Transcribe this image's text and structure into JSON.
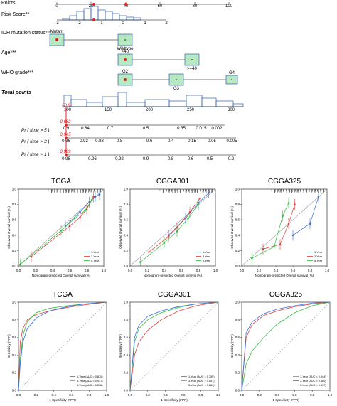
{
  "nomogram": {
    "rows": [
      {
        "label": "Points"
      },
      {
        "label": "Risk Score**"
      },
      {
        "label": "IDH mutation status***"
      },
      {
        "label": "Age***"
      },
      {
        "label": "WHO grade***"
      },
      {
        "label": "Total points"
      },
      {
        "label": "Pr ( time > 5 )"
      },
      {
        "label": "Pr ( time > 3 )"
      },
      {
        "label": "Pr ( time > 1 )"
      }
    ],
    "points_ticks": [
      "0",
      "20",
      "40",
      "60",
      "80",
      "100"
    ],
    "risk_ticks": [
      "-3",
      "-2",
      "-1",
      "0",
      "1",
      "2"
    ],
    "idh_levels": [
      "Mutant",
      "Wildtype"
    ],
    "age_levels": [
      "<40",
      ">=40"
    ],
    "grade_levels": [
      "G2",
      "G3",
      "G4"
    ],
    "total_ticks": [
      "100",
      "150",
      "200",
      "250",
      "300"
    ],
    "pr5_ticks": [
      "0.9",
      "0.84",
      "0.7",
      "0.5",
      "0.35",
      "0.015",
      "0.002"
    ],
    "pr3_ticks": [
      "0.96",
      "0.92",
      "0.88",
      "0.8",
      "0.6",
      "0.4",
      "0.15",
      "0.05",
      "0.005"
    ],
    "pr1_ticks": [
      "0.98",
      "0.96",
      "0.92",
      "0.9",
      "0.8",
      "0.6",
      "0.5",
      "0.2"
    ],
    "highlight": {
      "total": "68.9",
      "pr5": "0.682",
      "pr3": "0.945",
      "pr1": "0.989"
    }
  },
  "chart_data": [
    {
      "type": "line",
      "title": "TCGA",
      "xlabel": "Nomogram-predicted Overall survival (%)",
      "ylabel": "Observed Overall survival (%)",
      "xlim": [
        0,
        1
      ],
      "ylim": [
        0,
        1
      ],
      "x_ticks": [
        "0.0",
        "0.2",
        "0.4",
        "0.6",
        "0.8",
        "1.0"
      ],
      "y_ticks": [
        "0.0",
        "0.2",
        "0.4",
        "0.6",
        "0.8",
        "1.0"
      ],
      "legend": [
        "1-Year",
        "3-Year",
        "5-Year"
      ],
      "legend_position": "bottom-right",
      "series": [
        {
          "name": "1-Year",
          "color": "#3b6fe0",
          "x": [
            0.55,
            0.72,
            0.83,
            0.9,
            0.95
          ],
          "y": [
            0.52,
            0.7,
            0.83,
            0.9,
            0.93
          ]
        },
        {
          "name": "3-Year",
          "color": "#e03b3b",
          "x": [
            0.15,
            0.6,
            0.72,
            0.8,
            0.88
          ],
          "y": [
            0.12,
            0.52,
            0.63,
            0.74,
            0.9
          ]
        },
        {
          "name": "5-Year",
          "color": "#2fbf3f",
          "x": [
            0.02,
            0.5,
            0.66,
            0.78,
            0.86
          ],
          "y": [
            0.02,
            0.46,
            0.62,
            0.72,
            0.86
          ]
        }
      ]
    },
    {
      "type": "line",
      "title": "CGGA301",
      "xlabel": "Nomogram-predicted Overall survival (%)",
      "ylabel": "Observed Overall survival (%)",
      "xlim": [
        0,
        1
      ],
      "ylim": [
        0,
        1
      ],
      "x_ticks": [
        "0.0",
        "0.2",
        "0.4",
        "0.6",
        "0.8",
        "1.0"
      ],
      "y_ticks": [
        "0.0",
        "0.2",
        "0.4",
        "0.6",
        "0.8",
        "1.0"
      ],
      "legend": [
        "1-Year",
        "3-Year",
        "5-Year"
      ],
      "legend_position": "bottom-right",
      "series": [
        {
          "name": "1-Year",
          "color": "#3b6fe0",
          "x": [
            0.45,
            0.65,
            0.8,
            0.92
          ],
          "y": [
            0.4,
            0.62,
            0.82,
            0.95
          ]
        },
        {
          "name": "3-Year",
          "color": "#e03b3b",
          "x": [
            0.22,
            0.45,
            0.55,
            0.7,
            0.82
          ],
          "y": [
            0.18,
            0.38,
            0.5,
            0.7,
            0.88
          ]
        },
        {
          "name": "5-Year",
          "color": "#2fbf3f",
          "x": [
            0.12,
            0.4,
            0.55,
            0.68,
            0.8
          ],
          "y": [
            0.05,
            0.3,
            0.45,
            0.62,
            0.8
          ]
        }
      ]
    },
    {
      "type": "line",
      "title": "CGGA325",
      "xlabel": "Nomogram-predicted Overall survival (%)",
      "ylabel": "Observed Overall survival (%)",
      "xlim": [
        0,
        1
      ],
      "ylim": [
        0,
        1
      ],
      "x_ticks": [
        "0.0",
        "0.2",
        "0.4",
        "0.6",
        "0.8",
        "1.0"
      ],
      "y_ticks": [
        "0.0",
        "0.2",
        "0.4",
        "0.6",
        "0.8",
        "1.0"
      ],
      "legend": [
        "1-Year",
        "3-Year",
        "5-Year"
      ],
      "legend_position": "bottom-right",
      "series": [
        {
          "name": "1-Year",
          "color": "#3b6fe0",
          "x": [
            0.6,
            0.8,
            0.9
          ],
          "y": [
            0.4,
            0.55,
            0.9
          ]
        },
        {
          "name": "3-Year",
          "color": "#e03b3b",
          "x": [
            0.25,
            0.45,
            0.55,
            0.62
          ],
          "y": [
            0.22,
            0.28,
            0.55,
            0.8
          ]
        },
        {
          "name": "5-Year",
          "color": "#2fbf3f",
          "x": [
            0.12,
            0.38,
            0.48,
            0.55
          ],
          "y": [
            0.1,
            0.25,
            0.65,
            0.82
          ]
        }
      ]
    }
  ],
  "roc_data": [
    {
      "type": "line",
      "title": "TCGA",
      "xlabel": "1-Specificity (FPR)",
      "ylabel": "Sensitivity (TPR)",
      "x_ticks": [
        "0.0",
        "0.2",
        "0.4",
        "0.6",
        "0.8",
        "1.0"
      ],
      "y_ticks": [
        "0.0",
        "0.2",
        "0.4",
        "0.6",
        "0.8",
        "1.0"
      ],
      "legend": [
        "1-Year (AUC = 0.810)",
        "3-Year (AUC = 0.917)",
        "5-Year (AUC = 0.878)"
      ],
      "legend_position": "bottom-right",
      "series": [
        {
          "name": "1-Year (AUC = 0.810)",
          "color": "#e03b3b",
          "x": [
            0,
            0.02,
            0.05,
            0.1,
            0.2,
            0.35,
            0.55,
            0.75,
            1
          ],
          "y": [
            0,
            0.55,
            0.7,
            0.8,
            0.86,
            0.9,
            0.94,
            0.97,
            1
          ]
        },
        {
          "name": "3-Year (AUC = 0.917)",
          "color": "#2fbf3f",
          "x": [
            0,
            0.02,
            0.05,
            0.1,
            0.2,
            0.35,
            0.55,
            0.75,
            1
          ],
          "y": [
            0,
            0.35,
            0.62,
            0.78,
            0.88,
            0.93,
            0.96,
            0.98,
            1
          ]
        },
        {
          "name": "5-Year (AUC = 0.878)",
          "color": "#3b6fe0",
          "x": [
            0,
            0.02,
            0.05,
            0.1,
            0.2,
            0.35,
            0.55,
            0.75,
            1
          ],
          "y": [
            0,
            0.3,
            0.55,
            0.7,
            0.82,
            0.9,
            0.95,
            0.98,
            1
          ]
        }
      ]
    },
    {
      "type": "line",
      "title": "CGGA301",
      "xlabel": "1-Specificity (FPR)",
      "ylabel": "Sensitivity (TPR)",
      "x_ticks": [
        "0.0",
        "0.2",
        "0.4",
        "0.6",
        "0.8",
        "1.0"
      ],
      "y_ticks": [
        "0.0",
        "0.2",
        "0.4",
        "0.6",
        "0.8",
        "1.0"
      ],
      "legend": [
        "1-Year (AUC = 0.755)",
        "3-Year (AUC = 0.857)",
        "5-Year (AUC = 0.884)"
      ],
      "legend_position": "bottom-right",
      "series": [
        {
          "name": "1-Year (AUC = 0.755)",
          "color": "#e03b3b",
          "x": [
            0,
            0.05,
            0.1,
            0.2,
            0.35,
            0.55,
            0.75,
            1
          ],
          "y": [
            0,
            0.4,
            0.55,
            0.68,
            0.8,
            0.9,
            0.96,
            1
          ]
        },
        {
          "name": "3-Year (AUC = 0.857)",
          "color": "#2fbf3f",
          "x": [
            0,
            0.05,
            0.1,
            0.2,
            0.35,
            0.55,
            0.75,
            1
          ],
          "y": [
            0,
            0.55,
            0.7,
            0.8,
            0.88,
            0.94,
            0.98,
            1
          ]
        },
        {
          "name": "5-Year (AUC = 0.884)",
          "color": "#3b6fe0",
          "x": [
            0,
            0.05,
            0.1,
            0.2,
            0.35,
            0.55,
            0.75,
            1
          ],
          "y": [
            0,
            0.6,
            0.74,
            0.84,
            0.9,
            0.95,
            0.98,
            1
          ]
        }
      ]
    },
    {
      "type": "line",
      "title": "CGGA325",
      "xlabel": "1-Specificity (FPR)",
      "ylabel": "Sensitivity (TPR)",
      "x_ticks": [
        "0.0",
        "0.2",
        "0.4",
        "0.6",
        "0.8",
        "1.0"
      ],
      "y_ticks": [
        "0.0",
        "0.2",
        "0.4",
        "0.6",
        "0.8",
        "1.0"
      ],
      "legend": [
        "1-Year (AUC = 0.844)",
        "3-Year (AUC = 0.880)",
        "5-Year (AUC = 0.897)"
      ],
      "legend_position": "bottom-right",
      "series": [
        {
          "name": "1-Year (AUC = 0.844)",
          "color": "#2fbf3f",
          "x": [
            0,
            0.05,
            0.12,
            0.25,
            0.4,
            0.6,
            0.8,
            1
          ],
          "y": [
            0,
            0.3,
            0.45,
            0.6,
            0.75,
            0.88,
            0.96,
            1
          ]
        },
        {
          "name": "3-Year (AUC = 0.880)",
          "color": "#e03b3b",
          "x": [
            0,
            0.05,
            0.12,
            0.25,
            0.4,
            0.6,
            0.8,
            1
          ],
          "y": [
            0,
            0.6,
            0.75,
            0.85,
            0.9,
            0.95,
            0.98,
            1
          ]
        },
        {
          "name": "5-Year (AUC = 0.897)",
          "color": "#3b6fe0",
          "x": [
            0,
            0.05,
            0.12,
            0.25,
            0.4,
            0.6,
            0.8,
            1
          ],
          "y": [
            0,
            0.65,
            0.78,
            0.87,
            0.92,
            0.96,
            0.99,
            1
          ]
        }
      ]
    }
  ]
}
